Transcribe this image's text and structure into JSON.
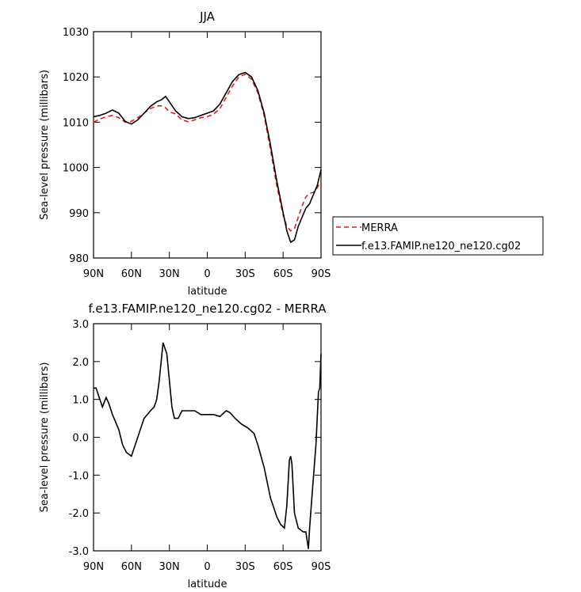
{
  "chart_data": [
    {
      "type": "line",
      "title": "JJA",
      "xlabel": "latitude",
      "ylabel": "Sea-level pressure (millibars)",
      "x": [
        90,
        85,
        80,
        75,
        70,
        65,
        60,
        55,
        50,
        45,
        40,
        36,
        33,
        30,
        25,
        20,
        15,
        10,
        5,
        0,
        -5,
        -10,
        -15,
        -20,
        -25,
        -30,
        -35,
        -40,
        -45,
        -50,
        -55,
        -60,
        -63,
        -66,
        -69,
        -72,
        -75,
        -78,
        -81,
        -84,
        -87,
        -90
      ],
      "series": [
        {
          "name": "MERRA",
          "color": "#e8191c",
          "dashed": true,
          "values": [
            1010,
            1010.7,
            1011.2,
            1011.5,
            1011,
            1010,
            1010.2,
            1011,
            1012,
            1013,
            1013.6,
            1013.6,
            1013.2,
            1012.3,
            1011.8,
            1010.5,
            1010.1,
            1010.5,
            1011,
            1011.2,
            1011.8,
            1013,
            1015.5,
            1018,
            1020,
            1020.6,
            1019.5,
            1016.5,
            1011.5,
            1004,
            996,
            989.5,
            987,
            986,
            986.5,
            989,
            991.5,
            993.5,
            994.3,
            994.5,
            995.5,
            997
          ]
        },
        {
          "name": "f.e13.FAMIP.ne120_ne120.cg02",
          "color": "#000000",
          "dashed": false,
          "values": [
            1011.2,
            1011.5,
            1012,
            1012.7,
            1012,
            1010.2,
            1009.6,
            1010.5,
            1012,
            1013.5,
            1014.5,
            1015,
            1015.7,
            1014.5,
            1012.5,
            1011.2,
            1010.8,
            1011,
            1011.5,
            1012,
            1012.5,
            1014,
            1016.5,
            1019,
            1020.5,
            1021,
            1020,
            1017,
            1012,
            1005,
            997,
            990,
            986,
            983.5,
            984,
            987,
            989,
            991,
            992,
            994,
            996,
            999.5
          ]
        }
      ],
      "xlim": [
        90,
        -90
      ],
      "xticks": [
        {
          "value": 90,
          "label": "90N"
        },
        {
          "value": 60,
          "label": "60N"
        },
        {
          "value": 30,
          "label": "30N"
        },
        0,
        {
          "value": -30,
          "label": "30S"
        },
        {
          "value": -60,
          "label": "60S"
        },
        {
          "value": -90,
          "label": "90S"
        }
      ],
      "ylim": [
        980,
        1030
      ],
      "yticks": [
        980,
        990,
        1000,
        1010,
        1020,
        1030
      ],
      "legend": "right"
    },
    {
      "type": "line",
      "title": "f.e13.FAMIP.ne120_ne120.cg02 - MERRA",
      "xlabel": "latitude",
      "ylabel": "Sea-level pressure (millibars)",
      "x": [
        90,
        88,
        85,
        83,
        80,
        78,
        75,
        70,
        67,
        64,
        60,
        57,
        53,
        50,
        45,
        42,
        40,
        38,
        35,
        32,
        30,
        28,
        26,
        23,
        20,
        15,
        10,
        5,
        0,
        -5,
        -10,
        -15,
        -18,
        -22,
        -27,
        -32,
        -37,
        -40,
        -45,
        -50,
        -55,
        -58,
        -61,
        -63,
        -65,
        -66,
        -67,
        -69,
        -72,
        -76,
        -78,
        -80,
        -81,
        -83,
        -86,
        -88,
        -89,
        -90
      ],
      "series": [
        {
          "name": "f.e13.FAMIP.ne120_ne120.cg02 - MERRA",
          "color": "#000000",
          "dashed": false,
          "values": [
            1.3,
            1.3,
            1.0,
            0.8,
            1.05,
            0.9,
            0.6,
            0.2,
            -0.2,
            -0.4,
            -0.5,
            -0.2,
            0.2,
            0.5,
            0.7,
            0.8,
            1.0,
            1.5,
            2.5,
            2.2,
            1.5,
            0.8,
            0.5,
            0.5,
            0.7,
            0.7,
            0.7,
            0.6,
            0.6,
            0.6,
            0.55,
            0.7,
            0.65,
            0.5,
            0.35,
            0.25,
            0.1,
            -0.2,
            -0.8,
            -1.6,
            -2.1,
            -2.3,
            -2.4,
            -1.8,
            -0.6,
            -0.5,
            -0.7,
            -2.0,
            -2.4,
            -2.5,
            -2.5,
            -2.95,
            -2.4,
            -1.5,
            -0.2,
            1.2,
            1.3,
            2.2
          ]
        }
      ],
      "xlim": [
        90,
        -90
      ],
      "xticks": [
        {
          "value": 90,
          "label": "90N"
        },
        {
          "value": 60,
          "label": "60N"
        },
        {
          "value": 30,
          "label": "30N"
        },
        0,
        {
          "value": -30,
          "label": "30S"
        },
        {
          "value": -60,
          "label": "60S"
        },
        {
          "value": -90,
          "label": "90S"
        }
      ],
      "ylim": [
        -3,
        3
      ],
      "yticks": [
        {
          "value": -3,
          "label": "-3.0"
        },
        {
          "value": -2,
          "label": "-2.0"
        },
        {
          "value": -1,
          "label": "-1.0"
        },
        {
          "value": 0,
          "label": "0.0"
        },
        {
          "value": 1,
          "label": "1.0"
        },
        {
          "value": 2,
          "label": "2.0"
        },
        {
          "value": 3,
          "label": "3.0"
        }
      ]
    }
  ]
}
